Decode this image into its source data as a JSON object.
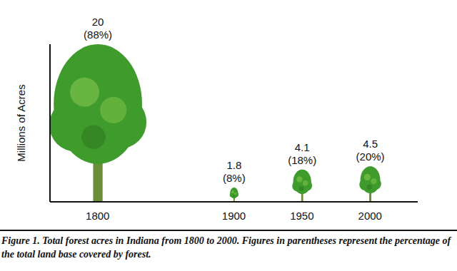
{
  "chart_data": {
    "type": "bar",
    "y_label": "Millions of Acres",
    "caption": "Figure 1. Total forest acres in Indiana from 1800 to 2000. Figures in parentheses represent the percentage of the total land base covered by forest.",
    "x": [
      1800,
      1900,
      1950,
      2000
    ],
    "values": [
      20,
      1.8,
      4.1,
      4.5
    ],
    "value_labels": [
      "20 (88%)",
      "1.8 (8%)",
      "4.1 (18%)",
      "4.5 (20%)"
    ],
    "color": "#3f9b2c",
    "xlim": [
      1765,
      2035
    ],
    "xticks": [
      1800,
      1900,
      1950,
      2000
    ],
    "ylim": [
      0,
      20
    ],
    "yticks": [],
    "data_labels": true,
    "tick_labels": "x",
    "grid": false,
    "marker": "tree"
  }
}
